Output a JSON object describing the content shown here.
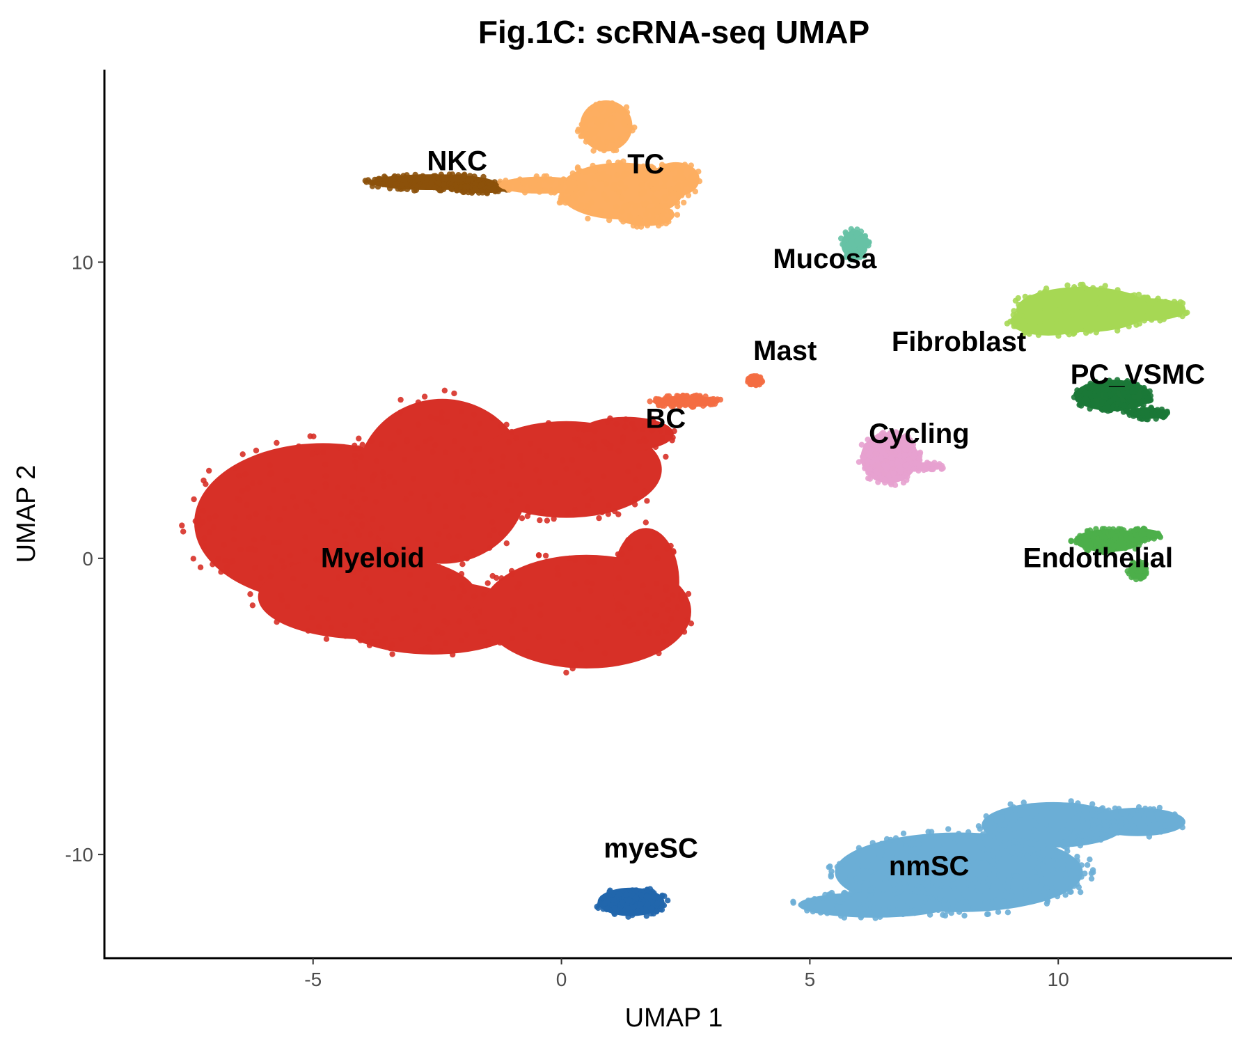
{
  "chart_data": {
    "type": "scatter",
    "title": "Fig.1C: scRNA-seq UMAP",
    "xlabel": "UMAP 1",
    "ylabel": "UMAP 2",
    "xlim": [
      -9.2,
      13.5
    ],
    "ylim": [
      -13.5,
      16.5
    ],
    "xticks": [
      -5,
      0,
      5,
      10
    ],
    "yticks": [
      -10,
      0,
      10
    ],
    "xtick_labels": [
      "-5",
      "0",
      "5",
      "10"
    ],
    "ytick_labels": [
      "-10",
      "0",
      "10"
    ],
    "grid": false,
    "legend": "none",
    "clusters": [
      {
        "name": "Myeloid",
        "color": "#D73027",
        "label_x": -3.8,
        "label_y": -0.3,
        "blobs": [
          [
            -4.8,
            1.2,
            2.7,
            2.8,
            0.5
          ],
          [
            -2.4,
            2.6,
            1.8,
            2.9,
            0.25
          ],
          [
            -2.6,
            -2.0,
            2.0,
            1.3,
            0.15
          ],
          [
            -3.9,
            -1.3,
            2.3,
            1.5,
            0.1
          ],
          [
            0.5,
            -1.8,
            2.2,
            2.0,
            0.15
          ],
          [
            0.1,
            3.0,
            2.0,
            1.7,
            0.1
          ],
          [
            1.7,
            -0.8,
            0.7,
            1.9,
            0.04
          ],
          [
            1.3,
            4.2,
            1.0,
            0.6,
            0.03
          ]
        ]
      },
      {
        "name": "NKC",
        "color": "#8C510A",
        "label_x": -2.1,
        "label_y": 13.1,
        "blobs": [
          [
            -2.6,
            12.7,
            1.3,
            0.28,
            1.0
          ],
          [
            -1.6,
            12.5,
            0.6,
            0.18,
            0.3
          ]
        ]
      },
      {
        "name": "TC",
        "color": "#FDAE61",
        "label_x": 1.7,
        "label_y": 13.0,
        "blobs": [
          [
            1.2,
            12.4,
            1.3,
            1.0,
            0.6
          ],
          [
            0.9,
            14.6,
            0.55,
            0.9,
            0.3
          ],
          [
            -0.4,
            12.6,
            0.9,
            0.3,
            0.3
          ],
          [
            2.3,
            12.8,
            0.5,
            0.6,
            0.2
          ],
          [
            1.7,
            11.6,
            0.6,
            0.4,
            0.15
          ]
        ]
      },
      {
        "name": "Mucosa",
        "color": "#66C2A5",
        "label_x": 5.3,
        "label_y": 9.8,
        "blobs": [
          [
            5.9,
            10.6,
            0.28,
            0.5,
            1.0
          ]
        ]
      },
      {
        "name": "Mast",
        "color": "#F46D43",
        "label_x": 4.5,
        "label_y": 6.7,
        "blobs": [
          [
            3.9,
            6.0,
            0.15,
            0.15,
            0.5
          ]
        ]
      },
      {
        "name": "BC",
        "color": "#F46D43",
        "label_x": 2.1,
        "label_y": 4.4,
        "blobs": [
          [
            2.5,
            5.3,
            0.7,
            0.2,
            1.0
          ]
        ]
      },
      {
        "name": "Fibroblast",
        "color": "#A6D854",
        "label_x": 8.0,
        "label_y": 7.0,
        "blobs": [
          [
            10.5,
            8.4,
            1.4,
            0.8,
            1.0
          ],
          [
            11.8,
            8.4,
            0.8,
            0.4,
            0.4
          ],
          [
            9.8,
            8.0,
            0.8,
            0.5,
            0.4
          ]
        ]
      },
      {
        "name": "PC_VSMC",
        "color": "#1B7837",
        "label_x": 11.6,
        "label_y": 5.9,
        "blobs": [
          [
            11.1,
            5.5,
            0.8,
            0.55,
            1.0
          ],
          [
            11.8,
            4.9,
            0.4,
            0.2,
            0.3
          ]
        ]
      },
      {
        "name": "Cycling",
        "color": "#E7A1CF",
        "label_x": 7.2,
        "label_y": 3.9,
        "blobs": [
          [
            6.6,
            3.4,
            0.6,
            0.9,
            1.0
          ],
          [
            7.3,
            3.1,
            0.4,
            0.15,
            0.3
          ]
        ]
      },
      {
        "name": "Endothelial",
        "color": "#4DAF4A",
        "label_x": 10.8,
        "label_y": -0.3,
        "blobs": [
          [
            11.0,
            0.6,
            0.7,
            0.4,
            1.0
          ],
          [
            11.7,
            0.8,
            0.4,
            0.2,
            0.3
          ],
          [
            11.6,
            -0.4,
            0.2,
            0.3,
            0.2
          ]
        ]
      },
      {
        "name": "myeSC",
        "color": "#2166AC",
        "label_x": 1.8,
        "label_y": -10.1,
        "blobs": [
          [
            1.4,
            -11.6,
            0.7,
            0.5,
            1.0
          ]
        ]
      },
      {
        "name": "nmSC",
        "color": "#6BAED6",
        "label_x": 7.4,
        "label_y": -10.7,
        "blobs": [
          [
            8.0,
            -10.6,
            2.6,
            1.4,
            1.0
          ],
          [
            9.9,
            -9.0,
            1.5,
            0.8,
            0.4
          ],
          [
            11.6,
            -8.9,
            1.0,
            0.5,
            0.25
          ],
          [
            6.3,
            -11.7,
            1.6,
            0.45,
            0.3
          ]
        ]
      }
    ]
  }
}
